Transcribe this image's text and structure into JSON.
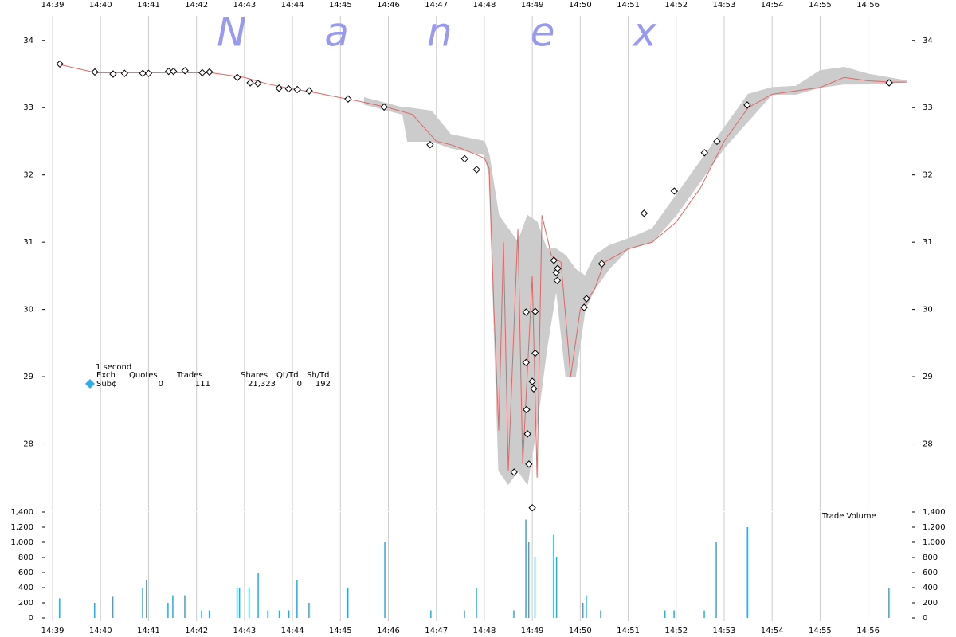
{
  "chart_data": [
    {
      "type": "line",
      "title": "Nanex",
      "title_color": "#9999ee",
      "xlim": [
        878.85,
        896.92
      ],
      "xticks": [
        {
          "value": 879,
          "label": "14:39"
        },
        {
          "value": 880,
          "label": "14:40"
        },
        {
          "value": 881,
          "label": "14:41"
        },
        {
          "value": 882,
          "label": "14:42"
        },
        {
          "value": 883,
          "label": "14:43"
        },
        {
          "value": 884,
          "label": "14:44"
        },
        {
          "value": 885,
          "label": "14:45"
        },
        {
          "value": 886,
          "label": "14:46"
        },
        {
          "value": 887,
          "label": "14:47"
        },
        {
          "value": 888,
          "label": "14:48"
        },
        {
          "value": 889,
          "label": "14:49"
        },
        {
          "value": 890,
          "label": "14:50"
        },
        {
          "value": 891,
          "label": "14:51"
        },
        {
          "value": 892,
          "label": "14:52"
        },
        {
          "value": 893,
          "label": "14:53"
        },
        {
          "value": 894,
          "label": "14:54"
        },
        {
          "value": 895,
          "label": "14:55"
        },
        {
          "value": 896,
          "label": "14:56"
        }
      ],
      "ylim": [
        27,
        34.4
      ],
      "yticks": [
        28,
        29,
        30,
        31,
        32,
        33,
        34
      ],
      "grid": true,
      "spread": {
        "color": "#cccccc",
        "x": [
          885.5,
          886.3,
          886.4,
          886.9,
          887.3,
          888.0,
          888.1,
          888.3,
          888.5,
          888.7,
          888.9,
          889.1,
          889.3,
          889.5,
          889.7,
          889.9,
          890.1,
          890.3,
          890.6,
          891.0,
          891.5,
          892.0,
          892.5,
          893.0,
          893.5,
          894.0,
          894.5,
          895.0,
          895.5,
          896.0,
          896.8
        ],
        "high": [
          33.15,
          33.0,
          33.0,
          32.95,
          32.6,
          32.5,
          32.3,
          31.4,
          31.2,
          31.0,
          31.4,
          31.3,
          30.9,
          30.9,
          30.8,
          30.6,
          30.5,
          30.8,
          30.95,
          31.05,
          31.2,
          31.7,
          32.2,
          32.7,
          33.2,
          33.3,
          33.32,
          33.55,
          33.6,
          33.5,
          33.4
        ],
        "low": [
          33.05,
          32.9,
          32.5,
          32.5,
          32.4,
          32.3,
          32.0,
          27.6,
          27.4,
          27.6,
          27.4,
          28.3,
          29.4,
          30.3,
          29.0,
          29.0,
          30.0,
          30.3,
          30.6,
          30.9,
          31.0,
          31.4,
          31.9,
          32.4,
          32.8,
          33.2,
          33.2,
          33.3,
          33.35,
          33.35,
          33.38
        ]
      },
      "trades": {
        "color": "#e06666",
        "x": [
          879.1,
          879.9,
          881,
          882,
          882.3,
          883,
          883.5,
          884,
          884.5,
          885,
          885.5,
          886,
          886.5,
          887,
          887.3,
          887.5,
          888,
          888.1,
          888.2,
          888.3,
          888.4,
          888.5,
          888.7,
          888.8,
          889,
          889.1,
          889.2,
          889.4,
          889.6,
          889.8,
          890,
          890.3,
          890.5,
          891,
          891.5,
          892,
          892.5,
          893,
          893.5,
          894,
          894.5,
          895,
          895.5,
          896,
          896.5,
          896.8
        ],
        "y": [
          33.65,
          33.52,
          33.52,
          33.52,
          33.52,
          33.45,
          33.35,
          33.28,
          33.22,
          33.15,
          33.08,
          33.0,
          32.9,
          32.5,
          32.45,
          32.4,
          32.25,
          32.1,
          30.0,
          28.2,
          31.0,
          27.6,
          31.2,
          27.7,
          30.5,
          27.5,
          31.4,
          30.8,
          30.7,
          29.0,
          30.0,
          30.3,
          30.7,
          30.9,
          31.0,
          31.3,
          31.8,
          32.5,
          33.0,
          33.2,
          33.25,
          33.3,
          33.45,
          33.4,
          33.38,
          33.38
        ]
      },
      "quotes": {
        "color": "#000000",
        "x": [
          879.15,
          879.88,
          880.26,
          880.5,
          880.88,
          881.0,
          881.42,
          881.52,
          881.76,
          882.12,
          882.27,
          882.85,
          883.12,
          883.28,
          883.72,
          883.92,
          884.1,
          884.35,
          885.16,
          885.91,
          886.87,
          887.59,
          887.84,
          888.62,
          888.87,
          888.87,
          888.88,
          888.9,
          888.93,
          889.0,
          889.03,
          889.06,
          889.06,
          889.0,
          889.45,
          889.5,
          889.53,
          889.52,
          890.08,
          890.13,
          890.45,
          891.33,
          891.96,
          892.59,
          892.85,
          893.48,
          896.44
        ],
        "y": [
          33.65,
          33.53,
          33.5,
          33.51,
          33.51,
          33.51,
          33.54,
          33.54,
          33.55,
          33.52,
          33.53,
          33.45,
          33.37,
          33.36,
          33.29,
          33.28,
          33.27,
          33.25,
          33.13,
          33.01,
          32.45,
          32.24,
          32.08,
          27.58,
          29.96,
          29.21,
          28.51,
          28.15,
          27.7,
          28.93,
          28.82,
          29.97,
          29.35,
          27.05,
          30.73,
          30.55,
          30.61,
          30.43,
          30.03,
          30.16,
          30.68,
          31.43,
          31.76,
          32.33,
          32.5,
          33.04,
          33.37
        ]
      },
      "info": {
        "caption": "1 second",
        "columns": [
          "Exch",
          "Quotes",
          "Trades",
          "Shares",
          "Qt/Td",
          "Sh/Td"
        ],
        "rows": [
          [
            "Sub¢",
            "0",
            "111",
            "21,323",
            "0",
            "192"
          ]
        ],
        "marker_color": "#33aaee"
      }
    },
    {
      "type": "bar",
      "title": "Trade Volume",
      "color": "#29abe2",
      "xlim": [
        878.85,
        896.92
      ],
      "xticks": [
        {
          "value": 879,
          "label": "14:39"
        },
        {
          "value": 880,
          "label": "14:40"
        },
        {
          "value": 881,
          "label": "14:41"
        },
        {
          "value": 882,
          "label": "14:42"
        },
        {
          "value": 883,
          "label": "14:43"
        },
        {
          "value": 884,
          "label": "14:44"
        },
        {
          "value": 885,
          "label": "14:45"
        },
        {
          "value": 886,
          "label": "14:46"
        },
        {
          "value": 887,
          "label": "14:47"
        },
        {
          "value": 888,
          "label": "14:48"
        },
        {
          "value": 889,
          "label": "14:49"
        },
        {
          "value": 890,
          "label": "14:50"
        },
        {
          "value": 891,
          "label": "14:51"
        },
        {
          "value": 892,
          "label": "14:52"
        },
        {
          "value": 893,
          "label": "14:53"
        },
        {
          "value": 894,
          "label": "14:54"
        },
        {
          "value": 895,
          "label": "14:55"
        },
        {
          "value": 896,
          "label": "14:56"
        }
      ],
      "ylim": [
        0,
        1400
      ],
      "yticks": [
        0,
        200,
        400,
        600,
        800,
        {
          "value": 1000,
          "label": "1,000"
        },
        {
          "value": 1200,
          "label": "1,200"
        },
        {
          "value": 1400,
          "label": "1,400"
        }
      ],
      "x": [
        879.15,
        879.88,
        880.26,
        880.88,
        880.96,
        881.41,
        881.51,
        881.76,
        882.11,
        882.27,
        882.85,
        882.9,
        883.1,
        883.29,
        883.49,
        883.73,
        883.93,
        884.1,
        884.35,
        885.16,
        885.93,
        886.89,
        887.59,
        887.84,
        888.62,
        888.87,
        888.93,
        889.06,
        889.45,
        889.51,
        890.06,
        890.13,
        890.43,
        891.77,
        891.96,
        892.59,
        892.84,
        893.49,
        896.44
      ],
      "values": [
        260,
        200,
        280,
        400,
        500,
        200,
        300,
        300,
        100,
        100,
        400,
        400,
        400,
        600,
        100,
        100,
        100,
        500,
        200,
        400,
        1000,
        100,
        100,
        400,
        100,
        1300,
        1000,
        800,
        1100,
        800,
        200,
        300,
        100,
        100,
        100,
        100,
        1000,
        1200,
        400
      ]
    }
  ]
}
